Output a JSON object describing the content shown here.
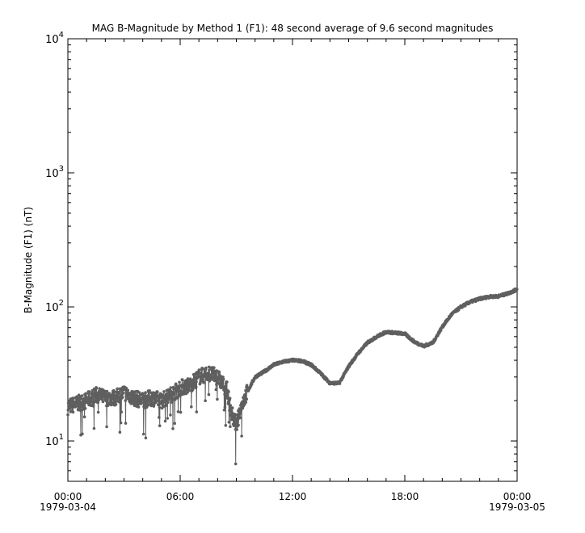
{
  "chart_data": {
    "type": "scatter",
    "title": "MAG  B-Magnitude by Method 1 (F1): 48 second average of 9.6 second magnitudes",
    "xlabel": "",
    "ylabel": "B-Magnitude (F1) (nT)",
    "yscale": "log",
    "ylim": [
      5,
      10000
    ],
    "xlim_hours": [
      0,
      24
    ],
    "x_ticks": [
      {
        "hour": 0,
        "label": "00:00",
        "sublabel": "1979-03-04"
      },
      {
        "hour": 6,
        "label": "06:00",
        "sublabel": ""
      },
      {
        "hour": 12,
        "label": "12:00",
        "sublabel": ""
      },
      {
        "hour": 18,
        "label": "18:00",
        "sublabel": ""
      },
      {
        "hour": 24,
        "label": "00:00",
        "sublabel": "1979-03-05"
      }
    ],
    "y_ticks": [
      {
        "value": 10,
        "base": "10",
        "exp": "1"
      },
      {
        "value": 100,
        "base": "10",
        "exp": "2"
      },
      {
        "value": 1000,
        "base": "10",
        "exp": "3"
      },
      {
        "value": 10000,
        "base": "10",
        "exp": "4"
      }
    ],
    "grid": false,
    "color": "#5f5f5f",
    "series": [
      {
        "x_hours": [
          0,
          0.5,
          1,
          1.5,
          2,
          2.5,
          3,
          3.5,
          4,
          4.5,
          5,
          5.5,
          6,
          6.5,
          7,
          7.5,
          8,
          8.5,
          8.75,
          9,
          9.25,
          9.5,
          10,
          10.5,
          11,
          11.5,
          12,
          12.5,
          13,
          13.5,
          14,
          14.5,
          15,
          15.5,
          16,
          16.5,
          17,
          17.5,
          18,
          18.5,
          19,
          19.5,
          20,
          20.5,
          21,
          21.5,
          22,
          22.5,
          23,
          23.5,
          24
        ],
        "values": [
          18,
          19,
          20,
          22,
          21,
          21,
          23,
          21,
          20,
          21,
          20,
          22,
          25,
          26,
          30,
          32,
          30,
          24,
          16,
          13,
          18,
          22,
          30,
          33,
          37,
          39,
          40,
          39.5,
          37,
          32,
          27,
          27,
          36,
          45,
          54,
          60,
          65,
          64,
          63,
          55,
          51,
          54,
          71,
          88,
          100,
          109,
          115,
          119,
          120,
          126,
          135
        ]
      }
    ]
  }
}
